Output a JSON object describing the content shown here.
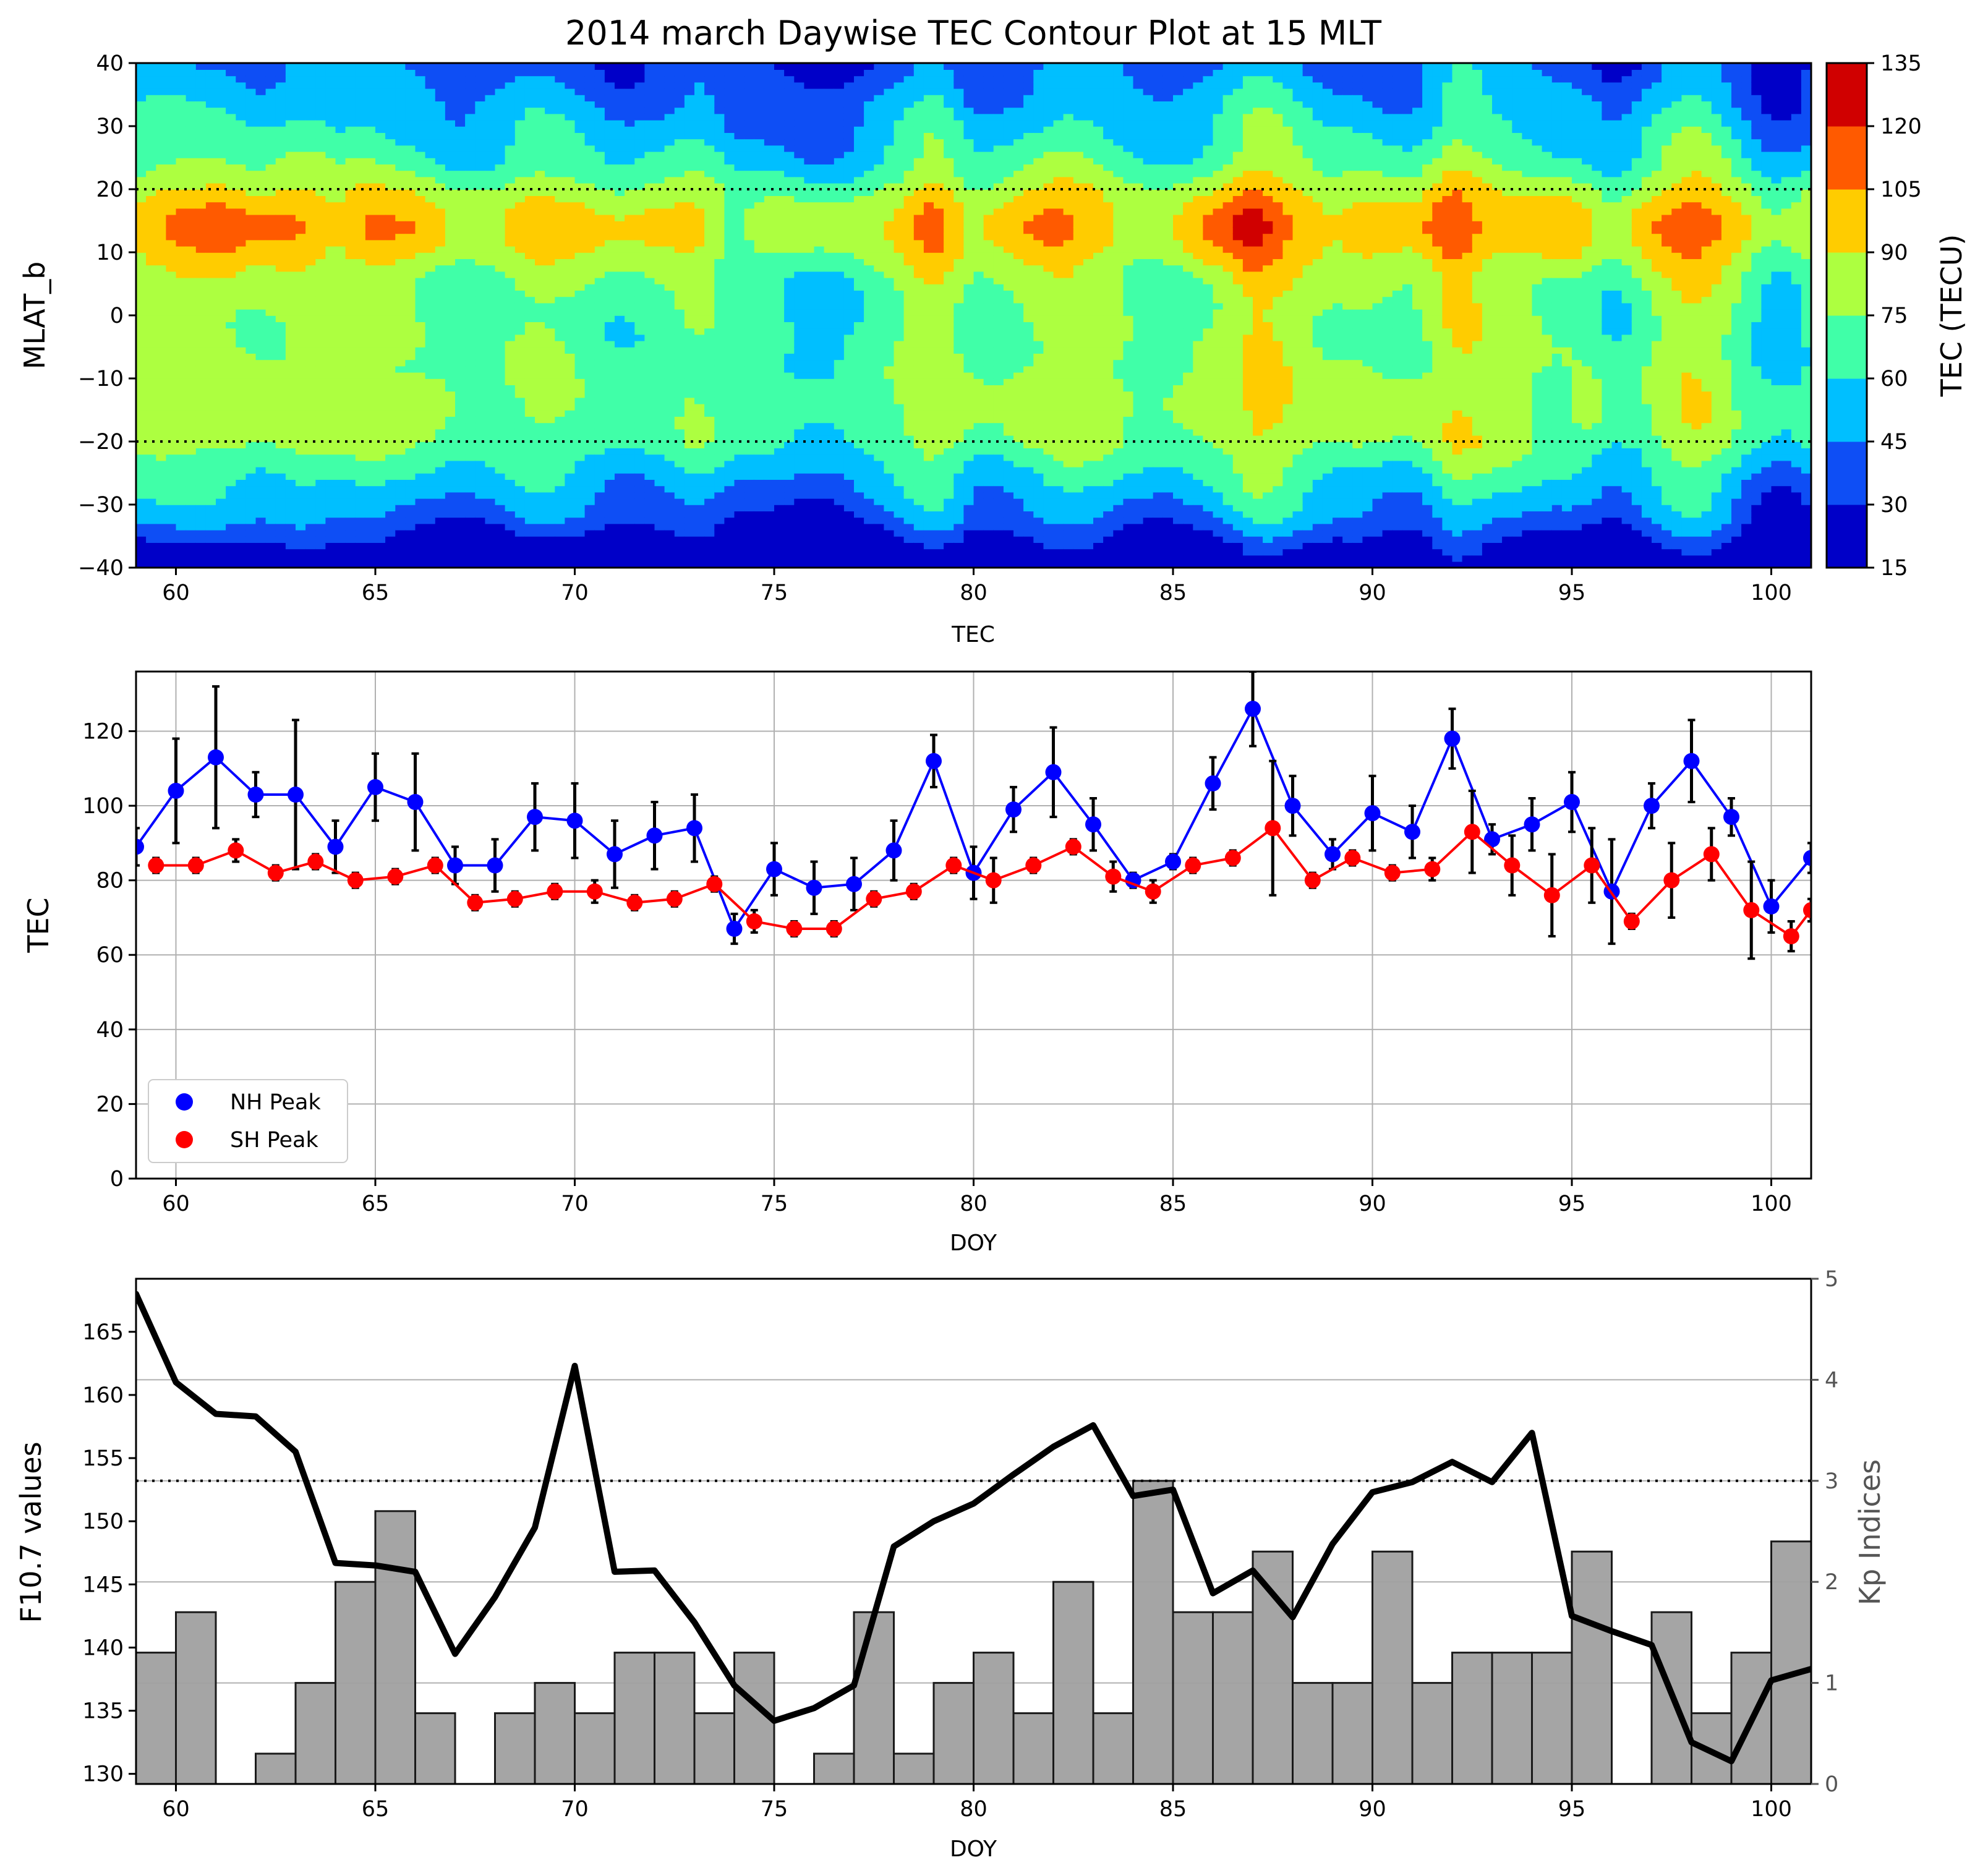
{
  "figure": {
    "title": "2014 march Daywise TEC Contour Plot at 15 MLT"
  },
  "chart_data": [
    {
      "type": "heatmap",
      "title": "2014 march Daywise TEC Contour Plot at 15 MLT",
      "xlabel": "TEC",
      "ylabel": "MLAT_b",
      "xlim": [
        59,
        101
      ],
      "ylim": [
        -40,
        40
      ],
      "xticks": [
        60,
        65,
        70,
        75,
        80,
        85,
        90,
        95,
        100
      ],
      "yticks": [
        -40,
        -30,
        -20,
        -10,
        0,
        10,
        20,
        30,
        40
      ],
      "reference_lines": [
        20,
        -20
      ],
      "colorbar": {
        "label": "TEC (TECU)",
        "levels": [
          15,
          30,
          45,
          60,
          75,
          90,
          105,
          120,
          135
        ],
        "colors": [
          "#0000c8",
          "#0e4ef5",
          "#00bfff",
          "#40ffa8",
          "#adff40",
          "#ffcc00",
          "#ff5a00",
          "#d00000"
        ]
      },
      "grid": false
    },
    {
      "type": "line",
      "xlabel": "DOY",
      "ylabel": "TEC",
      "xlim": [
        59,
        101
      ],
      "ylim": [
        0,
        136
      ],
      "xticks": [
        60,
        65,
        70,
        75,
        80,
        85,
        90,
        95,
        100
      ],
      "yticks": [
        0,
        20,
        40,
        60,
        80,
        100,
        120
      ],
      "grid": true,
      "legend": "lower-left",
      "series": [
        {
          "name": "NH Peak",
          "color": "#0000ff",
          "x": [
            59,
            60,
            61,
            62,
            63,
            64,
            65,
            66,
            67,
            68,
            69,
            70,
            71,
            72,
            73,
            74,
            75,
            76,
            77,
            78,
            79,
            80,
            81,
            82,
            83,
            84,
            85,
            86,
            87,
            88,
            89,
            90,
            91,
            92,
            93,
            94,
            95,
            96,
            97,
            98,
            99,
            100,
            101
          ],
          "y": [
            89,
            104,
            113,
            103,
            103,
            89,
            105,
            101,
            84,
            84,
            97,
            96,
            87,
            92,
            94,
            67,
            83,
            78,
            79,
            88,
            112,
            82,
            99,
            109,
            95,
            80,
            85,
            106,
            126,
            100,
            87,
            98,
            93,
            118,
            91,
            95,
            101,
            77,
            100,
            112,
            97,
            73,
            86
          ],
          "err": [
            5,
            14,
            19,
            6,
            20,
            7,
            9,
            13,
            5,
            7,
            9,
            10,
            9,
            9,
            9,
            4,
            7,
            7,
            7,
            8,
            7,
            7,
            6,
            12,
            7,
            2,
            2,
            7,
            10,
            8,
            4,
            10,
            7,
            8,
            4,
            7,
            8,
            14,
            6,
            11,
            5,
            7,
            4
          ]
        },
        {
          "name": "SH Peak",
          "color": "#ff0000",
          "x": [
            59.5,
            60.5,
            61.5,
            62.5,
            63.5,
            64.5,
            65.5,
            66.5,
            67.5,
            68.5,
            69.5,
            70.5,
            71.5,
            72.5,
            73.5,
            74.5,
            75.5,
            76.5,
            77.5,
            78.5,
            79.5,
            80.5,
            81.5,
            82.5,
            83.5,
            84.5,
            85.5,
            86.5,
            87.5,
            88.5,
            89.5,
            90.5,
            91.5,
            92.5,
            93.5,
            94.5,
            95.5,
            96.5,
            97.5,
            98.5,
            99.5,
            100.5,
            101
          ],
          "y": [
            84,
            84,
            88,
            82,
            85,
            80,
            81,
            84,
            74,
            75,
            77,
            77,
            74,
            75,
            79,
            69,
            67,
            67,
            75,
            77,
            84,
            80,
            84,
            89,
            81,
            77,
            84,
            86,
            94,
            80,
            86,
            82,
            83,
            93,
            84,
            76,
            84,
            69,
            80,
            87,
            72,
            65,
            72
          ],
          "err": [
            2,
            2,
            3,
            2,
            2,
            2,
            2,
            2,
            2,
            2,
            2,
            3,
            2,
            2,
            2,
            3,
            2,
            2,
            2,
            2,
            2,
            6,
            2,
            2,
            4,
            3,
            2,
            2,
            18,
            2,
            2,
            2,
            3,
            11,
            8,
            11,
            10,
            2,
            10,
            7,
            13,
            4,
            3
          ]
        }
      ]
    },
    {
      "type": "bar",
      "xlabel": "DOY",
      "ylabel": "F10.7 values",
      "y2label": "Kp Indices",
      "xlim": [
        59,
        101
      ],
      "ylim": [
        129.2,
        169.2
      ],
      "y2lim": [
        0,
        5
      ],
      "xticks": [
        60,
        65,
        70,
        75,
        80,
        85,
        90,
        95,
        100
      ],
      "yticks": [
        130,
        135,
        140,
        145,
        150,
        155,
        160,
        165
      ],
      "y2ticks": [
        0,
        1,
        2,
        3,
        4,
        5
      ],
      "kp_reference": 3,
      "grid": "y2",
      "series": [
        {
          "name": "Kp Indices",
          "color": "#a0a0a0",
          "x": [
            59,
            60,
            61,
            62,
            63,
            64,
            65,
            66,
            67,
            68,
            69,
            70,
            71,
            72,
            73,
            74,
            75,
            76,
            77,
            78,
            79,
            80,
            81,
            82,
            83,
            84,
            85,
            86,
            87,
            88,
            89,
            90,
            91,
            92,
            93,
            94,
            95,
            96,
            97,
            98,
            99,
            100
          ],
          "values": [
            1.3,
            1.7,
            0,
            0.3,
            1.0,
            2.0,
            2.7,
            0.7,
            0,
            0.7,
            1.0,
            0.7,
            1.3,
            1.3,
            0.7,
            1.3,
            0,
            0.3,
            1.7,
            0.3,
            1.0,
            1.3,
            0.7,
            2.0,
            0.7,
            3.0,
            1.7,
            1.7,
            2.3,
            1.0,
            1.0,
            2.3,
            1.0,
            1.3,
            1.3,
            1.3,
            2.3,
            0,
            1.7,
            0.7,
            1.3,
            2.4
          ]
        },
        {
          "name": "F10.7 values",
          "color": "#000000",
          "x": [
            59,
            60,
            61,
            62,
            63,
            64,
            65,
            66,
            67,
            68,
            69,
            70,
            71,
            72,
            73,
            74,
            75,
            76,
            77,
            78,
            79,
            80,
            81,
            82,
            83,
            84,
            85,
            86,
            87,
            88,
            89,
            90,
            91,
            92,
            93,
            94,
            95,
            96,
            97,
            98,
            99,
            100,
            101
          ],
          "values": [
            168,
            161,
            158.5,
            158.3,
            155.5,
            146.7,
            146.5,
            146,
            139.5,
            144,
            149.5,
            162.3,
            146,
            146.1,
            142,
            137,
            134.2,
            135.2,
            137,
            148,
            150,
            151.4,
            153.7,
            155.9,
            157.6,
            152,
            152.5,
            144.3,
            146.1,
            142.4,
            148.2,
            152.3,
            153.1,
            154.7,
            153.1,
            157,
            142.5,
            141.3,
            140.2,
            132.5,
            131,
            137.4,
            138.3
          ]
        }
      ]
    }
  ]
}
